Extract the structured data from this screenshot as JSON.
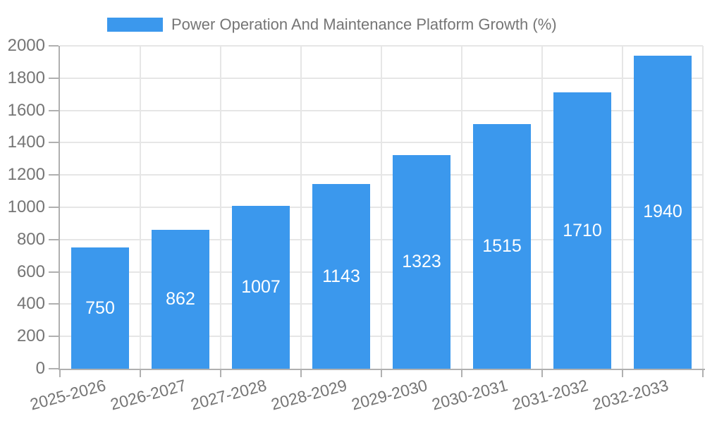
{
  "legend": {
    "label": "Power Operation And Maintenance Platform Growth (%)"
  },
  "chart_data": {
    "type": "bar",
    "title": "Power Operation And Maintenance Platform Growth (%)",
    "categories": [
      "2025-2026",
      "2026-2027",
      "2027-2028",
      "2028-2029",
      "2029-2030",
      "2030-2031",
      "2031-2032",
      "2032-2033"
    ],
    "values": [
      750,
      862,
      1007,
      1143,
      1323,
      1515,
      1710,
      1940
    ],
    "xlabel": "",
    "ylabel": "",
    "ylim": [
      0,
      2000
    ],
    "ytick_step": 200,
    "ytick_labels": [
      "0",
      "200",
      "400",
      "600",
      "800",
      "1000",
      "1200",
      "1400",
      "1600",
      "1800",
      "2000"
    ],
    "grid": true,
    "legend_position": "top",
    "xtick_rotation_deg": -15,
    "colors": {
      "bar": "#3b98ed",
      "value_label": "#ffffff",
      "axis_text": "#757575",
      "axis_line": "#b0b0b0",
      "gridline": "#e6e6e6",
      "background": "#ffffff"
    }
  }
}
